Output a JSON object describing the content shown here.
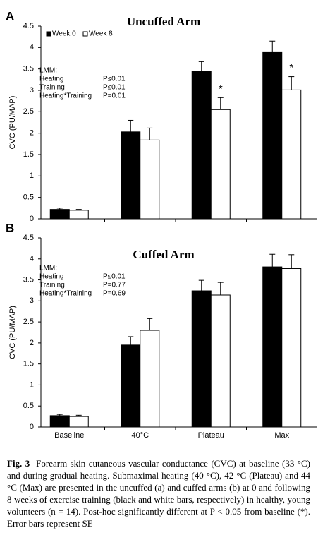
{
  "chart_data": [
    {
      "type": "bar",
      "panel": "A",
      "title": "Uncuffed Arm",
      "y_label": "CVC (PU/MAP)",
      "categories": [
        null,
        null,
        null,
        null
      ],
      "series": [
        {
          "name": "Week 0",
          "color": "#000000",
          "values": [
            0.22,
            2.03,
            3.44,
            3.9
          ],
          "errors": [
            0.03,
            0.27,
            0.23,
            0.25
          ]
        },
        {
          "name": "Week 8",
          "color": "#ffffff",
          "values": [
            0.2,
            1.84,
            2.55,
            3.01
          ],
          "errors": [
            0.02,
            0.28,
            0.28,
            0.31
          ],
          "significant": [
            false,
            false,
            true,
            true
          ]
        }
      ],
      "significance_marker": "*",
      "ylim": [
        0,
        4.5
      ],
      "yticks": [
        0,
        0.5,
        1,
        1.5,
        2,
        2.5,
        3,
        3.5,
        4,
        4.5
      ],
      "legend": true,
      "stats": {
        "heading": "LMM:",
        "rows": [
          [
            "Heating",
            "P≤0.01"
          ],
          [
            "Training",
            "P≤0.01"
          ],
          [
            "Heating*Training",
            "P=0.01"
          ]
        ]
      }
    },
    {
      "type": "bar",
      "panel": "B",
      "title": "Cuffed Arm",
      "y_label": "CVC (PU/MAP)",
      "categories": [
        "Baseline",
        "40°C",
        "Plateau",
        "Max"
      ],
      "series": [
        {
          "color": "#000000",
          "values": [
            0.27,
            1.95,
            3.24,
            3.81
          ],
          "errors": [
            0.03,
            0.2,
            0.25,
            0.3
          ]
        },
        {
          "color": "#ffffff",
          "values": [
            0.25,
            2.3,
            3.14,
            3.77
          ],
          "errors": [
            0.03,
            0.28,
            0.3,
            0.33
          ]
        }
      ],
      "ylim": [
        0,
        4.5
      ],
      "yticks": [
        0,
        0.5,
        1,
        1.5,
        2,
        2.5,
        3,
        3.5,
        4,
        4.5
      ],
      "legend": false,
      "stats": {
        "heading": "LMM:",
        "rows": [
          [
            "Heating",
            "P≤0.01"
          ],
          [
            "Training",
            "P=0.77"
          ],
          [
            "Heating*Training",
            "P=0.69"
          ]
        ]
      }
    }
  ],
  "caption": {
    "label": "Fig. 3",
    "text": "Forearm skin cutaneous vascular conductance (CVC) at baseline (33 °C) and during gradual heating. Submaximal heating (40 °C), 42 °C (Plateau) and 44 °C (Max) are presented in the uncuffed (a) and cuffed arms (b) at 0 and following 8 weeks of exercise training (black and white bars, respectively) in healthy, young volunteers (n = 14). Post-hoc significantly different at P < 0.05 from baseline (*). Error bars represent SE"
  }
}
